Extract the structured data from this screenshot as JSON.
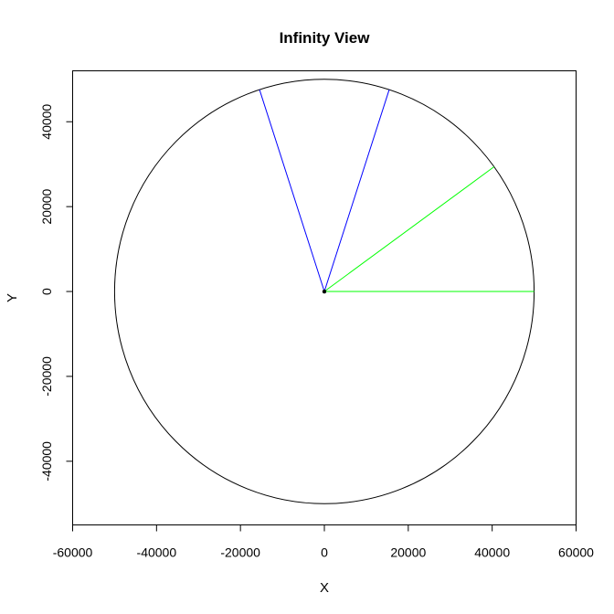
{
  "chart_data": {
    "type": "line",
    "title": "Infinity View",
    "xlabel": "X",
    "ylabel": "Y",
    "xlim": [
      -60000,
      60000
    ],
    "ylim": [
      -55000,
      52000
    ],
    "xticks": [
      -60000,
      -40000,
      -20000,
      0,
      20000,
      40000,
      60000
    ],
    "xtick_labels": [
      "-60000",
      "-40000",
      "-20000",
      "0",
      "20000",
      "40000",
      "60000"
    ],
    "yticks": [
      -40000,
      -20000,
      0,
      20000,
      40000
    ],
    "ytick_labels": [
      "-40000",
      "-20000",
      "0",
      "20000",
      "40000"
    ],
    "grid": false,
    "colors": {
      "circle": "#000000",
      "blue_wedge": "#0000ff",
      "green_wedge": "#00ff00",
      "origin": "#000000"
    },
    "circle": {
      "center": [
        0,
        0
      ],
      "radius": 50000
    },
    "segments": [
      {
        "color": "blue_wedge",
        "from": [
          0,
          0
        ],
        "to": [
          -15450,
          47550
        ]
      },
      {
        "color": "blue_wedge",
        "from": [
          0,
          0
        ],
        "to": [
          15450,
          47550
        ]
      },
      {
        "color": "green_wedge",
        "from": [
          0,
          0
        ],
        "to": [
          50000,
          0
        ]
      },
      {
        "color": "green_wedge",
        "from": [
          0,
          0
        ],
        "to": [
          40450,
          29390
        ]
      }
    ],
    "points": [
      {
        "x": 0,
        "y": 0
      }
    ]
  }
}
